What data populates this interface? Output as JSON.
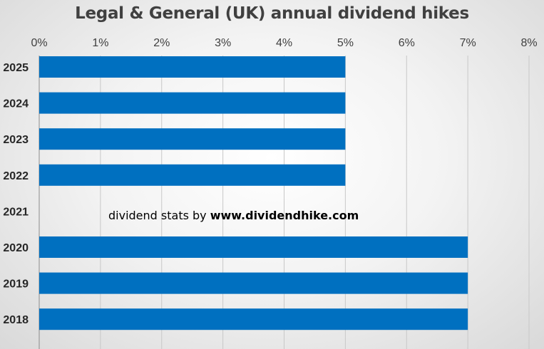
{
  "chart_data": {
    "type": "bar",
    "orientation": "horizontal",
    "title": "Legal & General (UK) annual dividend hikes",
    "categories": [
      "2025",
      "2024",
      "2023",
      "2022",
      "2021",
      "2020",
      "2019",
      "2018"
    ],
    "values": [
      5,
      5,
      5,
      5,
      null,
      7,
      7,
      7
    ],
    "value_unit": "%",
    "xlim": [
      0,
      8
    ],
    "x_ticks": [
      "0%",
      "1%",
      "2%",
      "3%",
      "4%",
      "5%",
      "6%",
      "7%",
      "8%"
    ],
    "x_axis_position": "top",
    "grid": true,
    "bar_color": "#0070C0",
    "xlabel": "",
    "ylabel": ""
  },
  "annotation": {
    "prefix": "dividend stats by ",
    "site": "www.dividendhike.com"
  }
}
